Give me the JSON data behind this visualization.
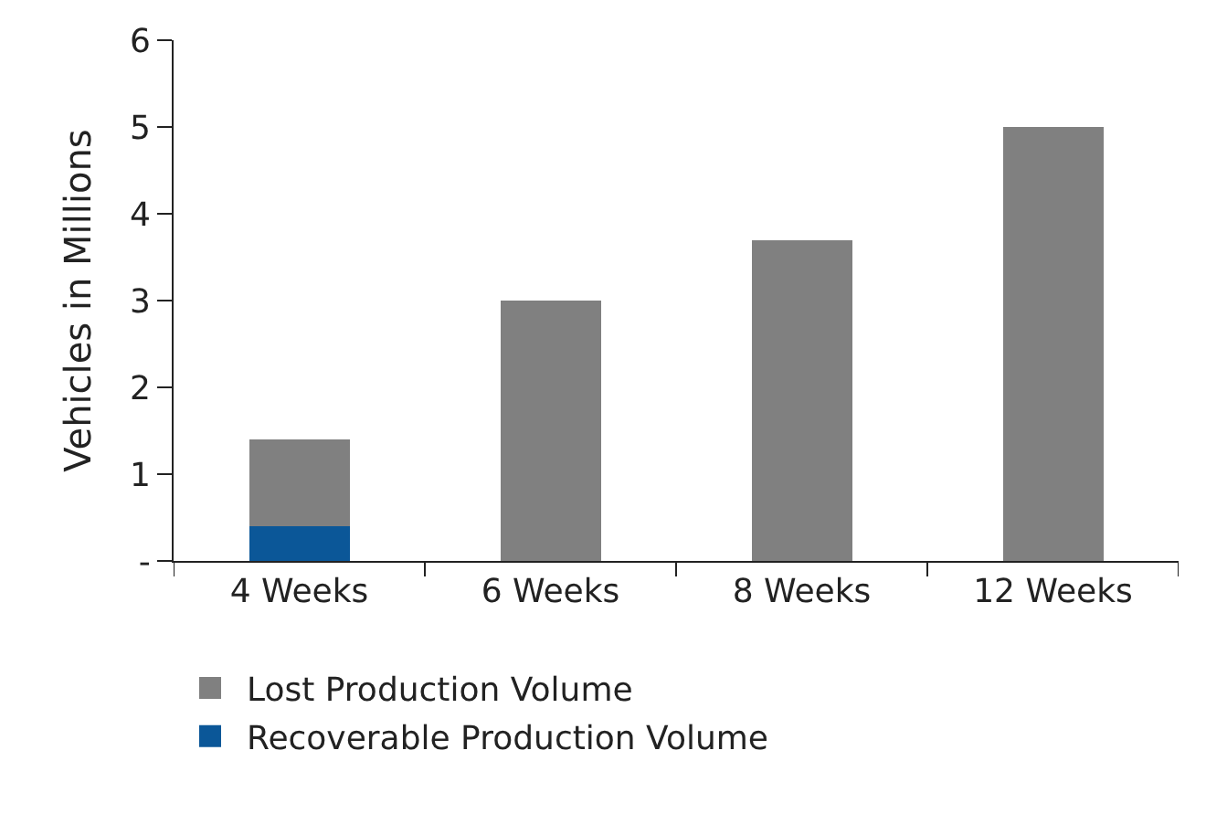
{
  "chart_data": {
    "type": "bar",
    "stacked": true,
    "ylabel": "Vehicles in Millions",
    "categories": [
      "4 Weeks",
      "6 Weeks",
      "8 Weeks",
      "12 Weeks"
    ],
    "series": [
      {
        "name": "Recoverable Production Volume",
        "color": "#0b5798",
        "values": [
          0.4,
          0,
          0,
          0
        ]
      },
      {
        "name": "Lost Production Volume",
        "color": "#808080",
        "values": [
          1.0,
          3.0,
          3.7,
          5.0
        ]
      }
    ],
    "ylim": [
      0,
      6
    ],
    "yticks": [
      {
        "value": 0,
        "label": "-"
      },
      1,
      2,
      3,
      4,
      5,
      6
    ],
    "legend": "bottom"
  }
}
